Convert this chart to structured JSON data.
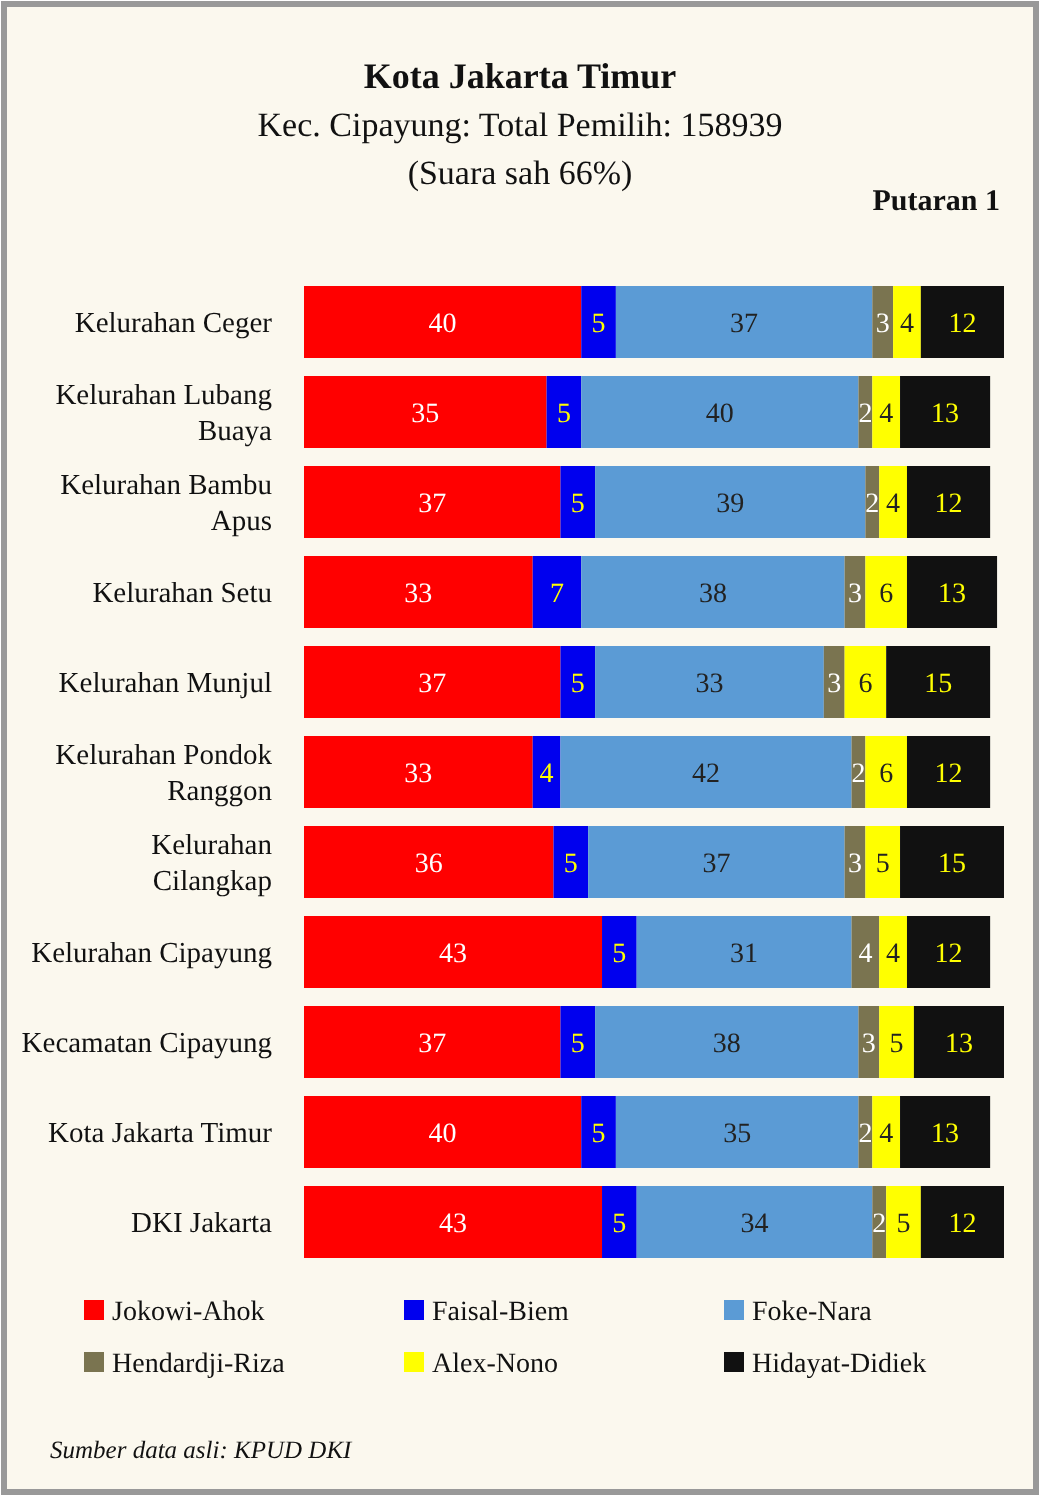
{
  "chart_data": {
    "type": "bar",
    "orientation": "horizontal",
    "stacked": true,
    "data_labels": true,
    "title": "Kota Jakarta Timur",
    "subtitle": "Kec. Cipayung: Total Pemilih: 158939\n(Suara sah 66%)",
    "annotations": [
      "Putaran 1",
      "Sumber data asli: KPUD DKI"
    ],
    "categories": [
      "Kelurahan Ceger",
      "Kelurahan Lubang Buaya",
      "Kelurahan Bambu Apus",
      "Kelurahan Setu",
      "Kelurahan Munjul",
      "Kelurahan Pondok Ranggon",
      "Kelurahan Cilangkap",
      "Kelurahan Cipayung",
      "Kecamatan Cipayung",
      "Kota Jakarta Timur",
      "DKI Jakarta"
    ],
    "xlim": [
      0,
      101
    ],
    "legend": "bottom",
    "series": [
      {
        "name": "Jokowi-Ahok",
        "color": "#ff0000",
        "values": [
          40,
          35,
          37,
          33,
          37,
          33,
          36,
          43,
          37,
          40,
          43
        ]
      },
      {
        "name": "Faisal-Biem",
        "color": "#0000ee",
        "values": [
          5,
          5,
          5,
          7,
          5,
          4,
          5,
          5,
          5,
          5,
          5
        ]
      },
      {
        "name": "Foke-Nara",
        "color": "#5b9bd5",
        "values": [
          37,
          40,
          39,
          38,
          33,
          42,
          37,
          31,
          38,
          35,
          34
        ]
      },
      {
        "name": "Hendardji-Riza",
        "color": "#7a7450",
        "values": [
          3,
          2,
          2,
          3,
          3,
          2,
          3,
          4,
          3,
          2,
          2
        ]
      },
      {
        "name": "Alex-Nono",
        "color": "#ffff00",
        "values": [
          4,
          4,
          4,
          6,
          6,
          6,
          5,
          4,
          5,
          4,
          5
        ]
      },
      {
        "name": "Hidayat-Didiek",
        "color": "#111111",
        "values": [
          12,
          13,
          12,
          13,
          15,
          12,
          15,
          12,
          13,
          13,
          12
        ]
      }
    ]
  }
}
